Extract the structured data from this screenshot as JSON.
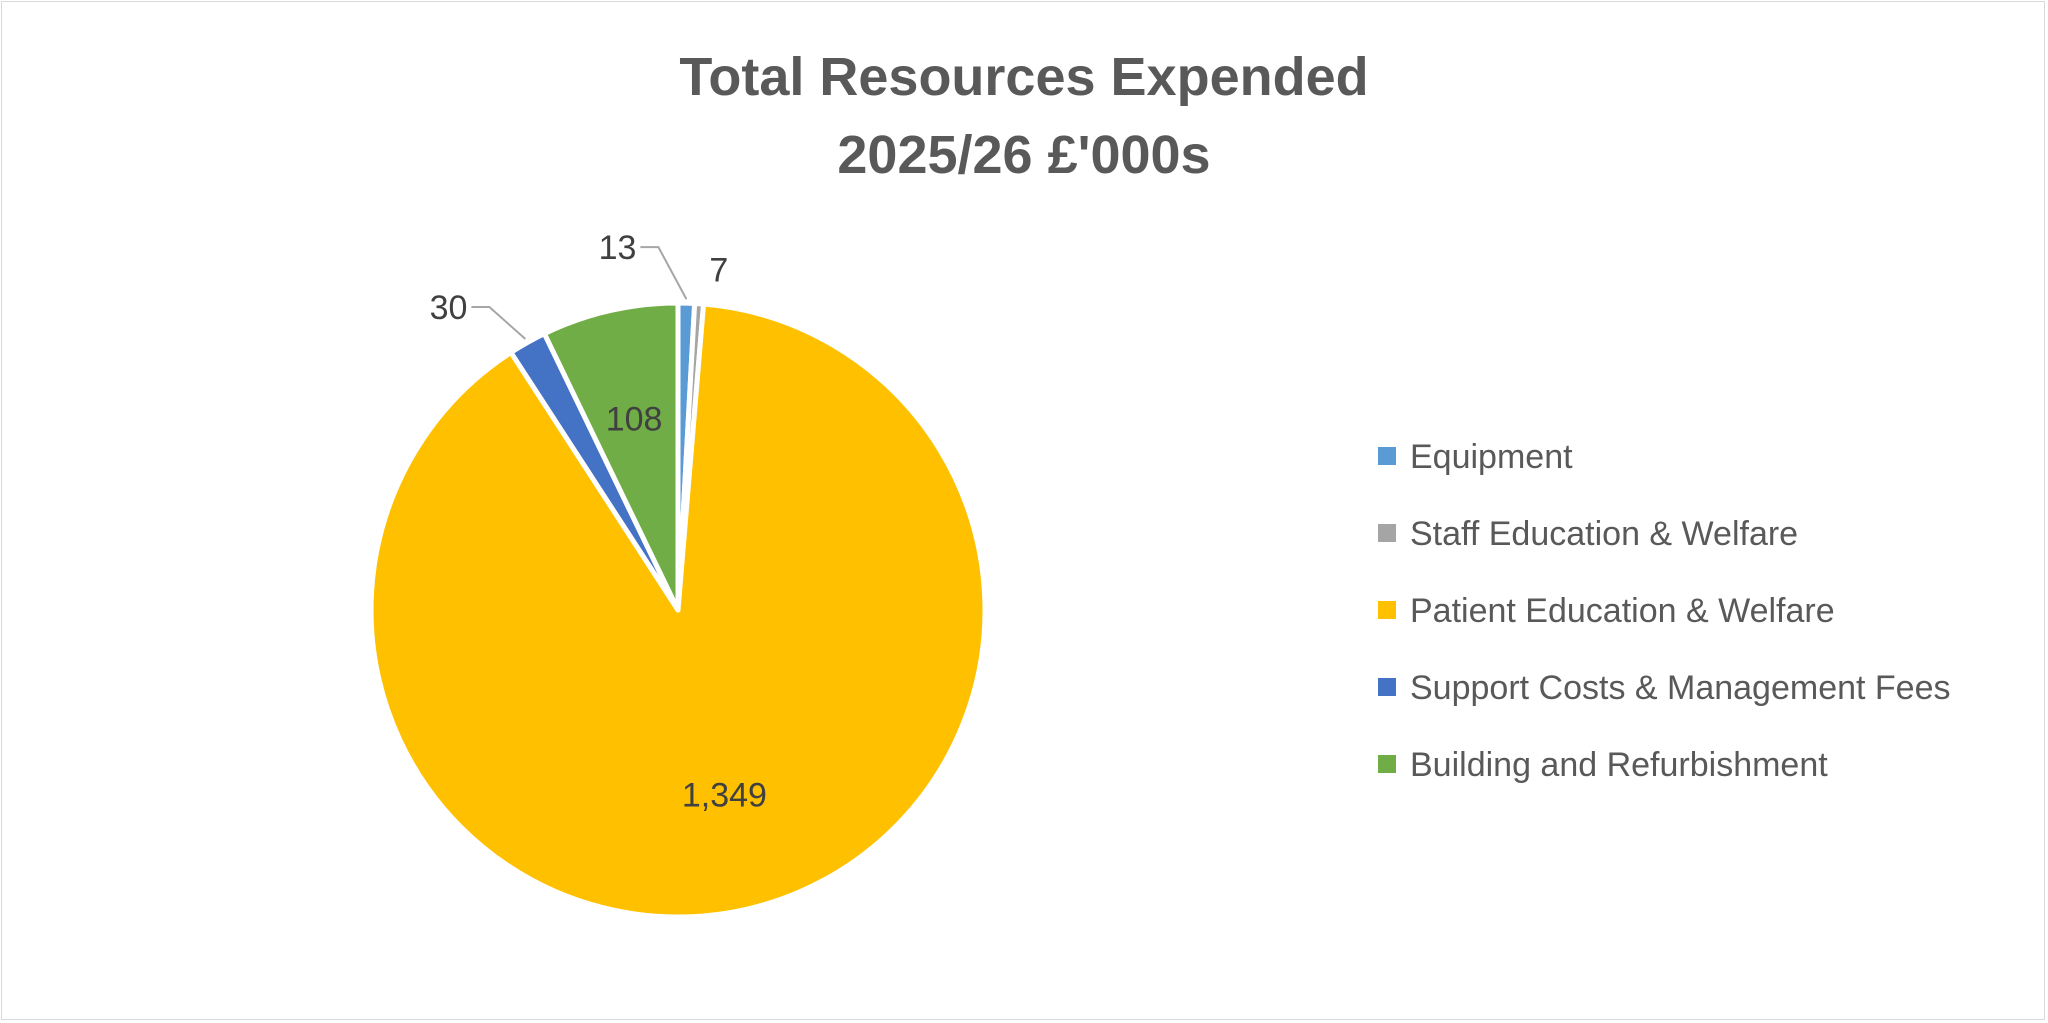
{
  "chart_data": {
    "type": "pie",
    "title": [
      "Total Resources Expended",
      "2025/26 £'000s"
    ],
    "categories": [
      "Equipment",
      "Staff Education & Welfare",
      "Patient Education & Welfare",
      "Support Costs & Management Fees",
      "Building and Refurbishment"
    ],
    "values": [
      13,
      7,
      1349,
      30,
      108
    ],
    "data_labels": [
      "13",
      "7",
      "1,349",
      "30",
      "108"
    ],
    "colors": [
      "#5b9bd5",
      "#a5a5a5",
      "#ffc000",
      "#4472c4",
      "#70ad47"
    ],
    "legend_position": "right"
  }
}
